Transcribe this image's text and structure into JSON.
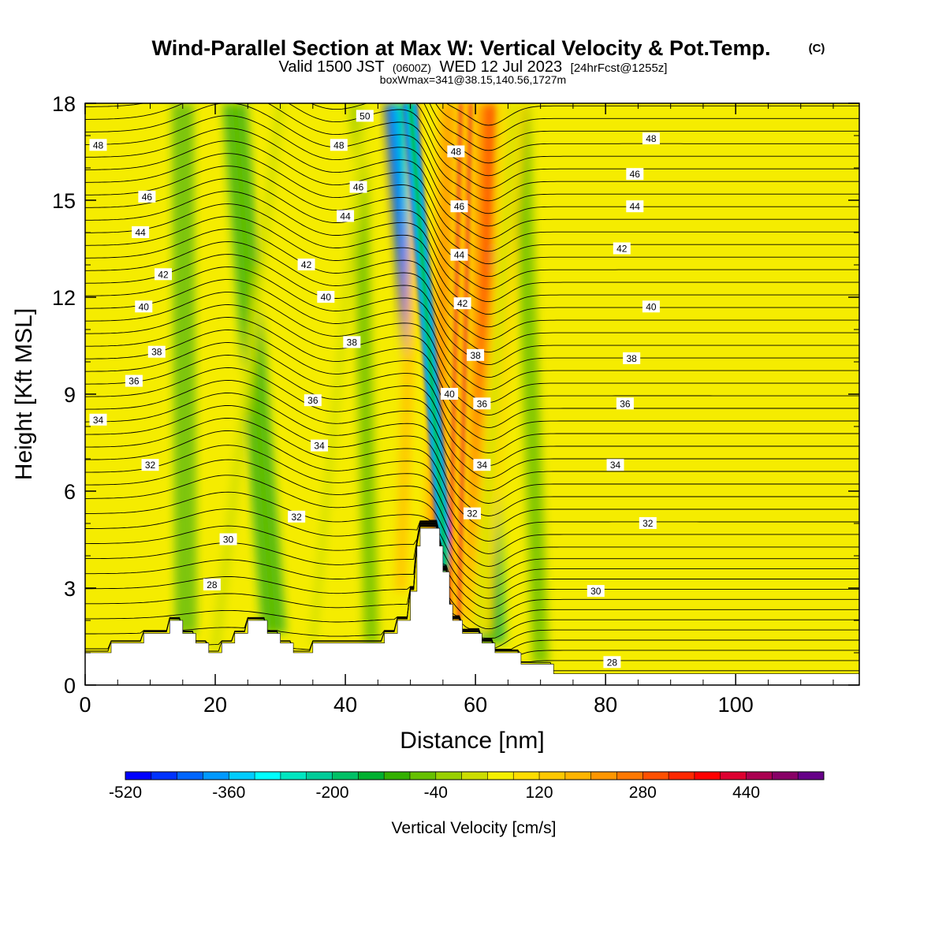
{
  "header": {
    "title": "Wind-Parallel Section at Max W: Vertical Velocity & Pot.Temp.",
    "copyright": "(C)",
    "valid_prefix": "Valid 1500 JST",
    "valid_utc": "(0600Z)",
    "valid_date": "WED 12 Jul 2023",
    "forecast": "[24hrFcst@1255z]",
    "box_info": "boxWmax=341@38.15,140.56,1727m"
  },
  "chart_data": {
    "type": "heatmap",
    "xlabel": "Distance [nm]",
    "ylabel": "Height [Kft MSL]",
    "xlim": [
      0,
      119
    ],
    "ylim": [
      0,
      18
    ],
    "x_ticks": [
      0,
      20,
      40,
      60,
      80,
      100
    ],
    "y_ticks": [
      0,
      3,
      6,
      9,
      12,
      15,
      18
    ],
    "colorbar": {
      "label": "Vertical Velocity [cm/s]",
      "tick_labels": [
        "-520",
        "-360",
        "-200",
        "-40",
        "120",
        "280",
        "440"
      ],
      "tick_values": [
        -520,
        -360,
        -200,
        -40,
        120,
        280,
        440
      ],
      "colors": [
        "#0000ff",
        "#0033ff",
        "#0066ff",
        "#0099ff",
        "#00ccff",
        "#00ffff",
        "#00e6c0",
        "#00cc99",
        "#00c066",
        "#00b030",
        "#33b000",
        "#66c000",
        "#99d000",
        "#ccdd00",
        "#f5f000",
        "#ffdd00",
        "#ffc800",
        "#ffb400",
        "#ff9600",
        "#ff7800",
        "#ff5000",
        "#ff2800",
        "#ff0000",
        "#dd0030",
        "#aa0050",
        "#880066",
        "#660088"
      ]
    },
    "terrain": [
      [
        0,
        1.0
      ],
      [
        4,
        1.0
      ],
      [
        4,
        1.3
      ],
      [
        9,
        1.3
      ],
      [
        9,
        1.6
      ],
      [
        13,
        1.6
      ],
      [
        13,
        2.0
      ],
      [
        15,
        2.0
      ],
      [
        15,
        1.6
      ],
      [
        17,
        1.6
      ],
      [
        17,
        1.3
      ],
      [
        19,
        1.3
      ],
      [
        19,
        1.0
      ],
      [
        21,
        1.0
      ],
      [
        21,
        1.3
      ],
      [
        23,
        1.3
      ],
      [
        23,
        1.6
      ],
      [
        25,
        1.6
      ],
      [
        25,
        2.0
      ],
      [
        28,
        2.0
      ],
      [
        28,
        1.6
      ],
      [
        30,
        1.6
      ],
      [
        30,
        1.3
      ],
      [
        32,
        1.3
      ],
      [
        32,
        1.0
      ],
      [
        35,
        1.0
      ],
      [
        35,
        1.3
      ],
      [
        46,
        1.3
      ],
      [
        46,
        1.6
      ],
      [
        48,
        1.6
      ],
      [
        48,
        2.0
      ],
      [
        50,
        2.0
      ],
      [
        50,
        2.9
      ],
      [
        51,
        2.9
      ],
      [
        51,
        4.3
      ],
      [
        51.5,
        4.3
      ],
      [
        51.5,
        4.85
      ],
      [
        54.5,
        4.85
      ],
      [
        54.5,
        4.3
      ],
      [
        55,
        4.3
      ],
      [
        55,
        3.5
      ],
      [
        56,
        3.5
      ],
      [
        56,
        2.5
      ],
      [
        56.5,
        2.5
      ],
      [
        56.5,
        2.0
      ],
      [
        58,
        2.0
      ],
      [
        58,
        1.6
      ],
      [
        61,
        1.6
      ],
      [
        61,
        1.3
      ],
      [
        63,
        1.3
      ],
      [
        63,
        1.0
      ],
      [
        67,
        1.0
      ],
      [
        67,
        0.65
      ],
      [
        72,
        0.65
      ],
      [
        72,
        0.35
      ],
      [
        119,
        0.35
      ]
    ],
    "updrafts": [
      {
        "x_bottom": 56.7,
        "x_top": 58.5,
        "strength": 341
      },
      {
        "x_bottom": 50.5,
        "x_top": 53,
        "strength": 180
      },
      {
        "x_bottom": 60.5,
        "x_top": 66,
        "strength": 120
      },
      {
        "x_bottom": 35,
        "x_top": 43,
        "strength": 60
      },
      {
        "x_bottom": 20,
        "x_top": 30,
        "strength": 50
      }
    ],
    "downdrafts": [
      {
        "x_bottom": 55.5,
        "x_top": 50,
        "strength": -520
      },
      {
        "x_bottom": 62.5,
        "x_top": 60,
        "strength": -180
      },
      {
        "x_bottom": 29,
        "x_top": 23,
        "strength": -160
      },
      {
        "x_bottom": 15.5,
        "x_top": 15,
        "strength": -130
      },
      {
        "x_bottom": 44,
        "x_top": 42,
        "strength": -90
      },
      {
        "x_bottom": 70,
        "x_top": 67,
        "strength": -100
      }
    ],
    "theta_labels": [
      {
        "text": "50",
        "x": 43,
        "y": 17.6
      },
      {
        "text": "48",
        "x": 2,
        "y": 16.7
      },
      {
        "text": "48",
        "x": 39,
        "y": 16.7
      },
      {
        "text": "48",
        "x": 57,
        "y": 16.5
      },
      {
        "text": "48",
        "x": 87,
        "y": 16.9
      },
      {
        "text": "46",
        "x": 9.5,
        "y": 15.1
      },
      {
        "text": "46",
        "x": 42,
        "y": 15.4
      },
      {
        "text": "46",
        "x": 57.5,
        "y": 14.8
      },
      {
        "text": "46",
        "x": 84.5,
        "y": 15.8
      },
      {
        "text": "44",
        "x": 8.5,
        "y": 14.0
      },
      {
        "text": "44",
        "x": 40,
        "y": 14.5
      },
      {
        "text": "44",
        "x": 57.5,
        "y": 13.3
      },
      {
        "text": "44",
        "x": 84.5,
        "y": 14.8
      },
      {
        "text": "42",
        "x": 12,
        "y": 12.7
      },
      {
        "text": "42",
        "x": 34,
        "y": 13.0
      },
      {
        "text": "42",
        "x": 58,
        "y": 11.8
      },
      {
        "text": "42",
        "x": 82.5,
        "y": 13.5
      },
      {
        "text": "40",
        "x": 9,
        "y": 11.7
      },
      {
        "text": "40",
        "x": 37,
        "y": 12.0
      },
      {
        "text": "40",
        "x": 56,
        "y": 9.0
      },
      {
        "text": "40",
        "x": 87,
        "y": 11.7
      },
      {
        "text": "38",
        "x": 11,
        "y": 10.3
      },
      {
        "text": "38",
        "x": 41,
        "y": 10.6
      },
      {
        "text": "38",
        "x": 60,
        "y": 10.2
      },
      {
        "text": "38",
        "x": 84,
        "y": 10.1
      },
      {
        "text": "36",
        "x": 7.5,
        "y": 9.4
      },
      {
        "text": "36",
        "x": 35,
        "y": 8.8
      },
      {
        "text": "36",
        "x": 61,
        "y": 8.7
      },
      {
        "text": "36",
        "x": 83,
        "y": 8.7
      },
      {
        "text": "34",
        "x": 2,
        "y": 8.2
      },
      {
        "text": "34",
        "x": 36,
        "y": 7.4
      },
      {
        "text": "34",
        "x": 61,
        "y": 6.8
      },
      {
        "text": "34",
        "x": 81.5,
        "y": 6.8
      },
      {
        "text": "32",
        "x": 10,
        "y": 6.8
      },
      {
        "text": "32",
        "x": 32.5,
        "y": 5.2
      },
      {
        "text": "32",
        "x": 59.5,
        "y": 5.3
      },
      {
        "text": "32",
        "x": 86.5,
        "y": 5.0
      },
      {
        "text": "30",
        "x": 22,
        "y": 4.5
      },
      {
        "text": "30",
        "x": 78.5,
        "y": 2.9
      },
      {
        "text": "28",
        "x": 19.5,
        "y": 3.1
      },
      {
        "text": "28",
        "x": 81,
        "y": 0.7
      }
    ]
  }
}
